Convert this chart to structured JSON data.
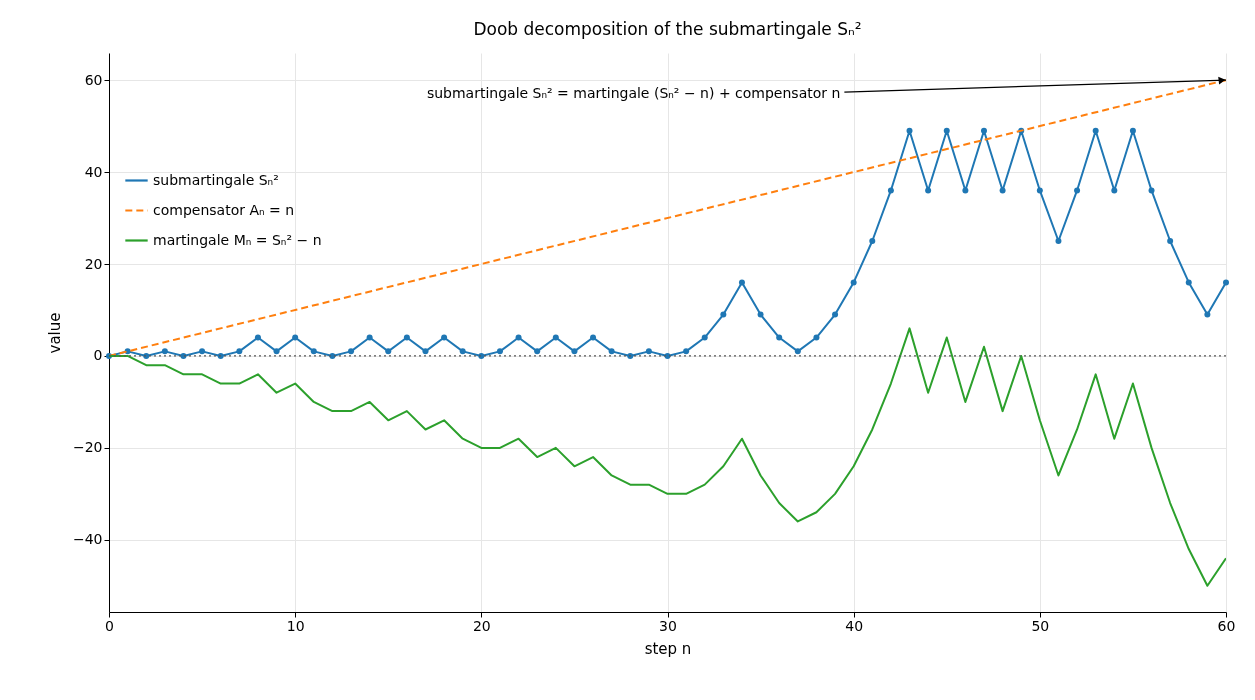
{
  "chart_data": {
    "type": "line",
    "title": "Doob decomposition of the submartingale Sₙ²",
    "xlabel": "step  n",
    "ylabel": "value",
    "x": [
      0,
      1,
      2,
      3,
      4,
      5,
      6,
      7,
      8,
      9,
      10,
      11,
      12,
      13,
      14,
      15,
      16,
      17,
      18,
      19,
      20,
      21,
      22,
      23,
      24,
      25,
      26,
      27,
      28,
      29,
      30,
      31,
      32,
      33,
      34,
      35,
      36,
      37,
      38,
      39,
      40,
      41,
      42,
      43,
      44,
      45,
      46,
      47,
      48,
      49,
      50,
      51,
      52,
      53,
      54,
      55,
      56,
      57,
      58,
      59,
      60
    ],
    "series": [
      {
        "name": "submartingale  Sₙ²",
        "color": "#1f77b4",
        "marker": "circle",
        "line_style": "solid",
        "values": [
          0,
          1,
          0,
          1,
          0,
          1,
          0,
          1,
          4,
          1,
          4,
          1,
          0,
          1,
          4,
          1,
          4,
          1,
          4,
          1,
          0,
          1,
          4,
          1,
          4,
          1,
          4,
          1,
          0,
          1,
          0,
          1,
          4,
          9,
          16,
          9,
          4,
          1,
          4,
          9,
          16,
          25,
          36,
          49,
          36,
          49,
          36,
          49,
          36,
          49,
          36,
          25,
          36,
          49,
          36,
          49,
          36,
          25,
          16,
          9,
          16
        ]
      },
      {
        "name": "compensator  Aₙ = n",
        "color": "#ff7f0e",
        "line_style": "dashed",
        "x": [
          0,
          60
        ],
        "values": [
          0,
          60
        ]
      },
      {
        "name": "martingale  Mₙ = Sₙ² − n",
        "color": "#2ca02c",
        "line_style": "solid",
        "values": [
          0,
          0,
          -2,
          -2,
          -4,
          -4,
          -6,
          -6,
          -4,
          -8,
          -6,
          -10,
          -12,
          -12,
          -10,
          -14,
          -12,
          -16,
          -14,
          -18,
          -20,
          -20,
          -18,
          -22,
          -20,
          -24,
          -22,
          -26,
          -28,
          -28,
          -30,
          -30,
          -28,
          -24,
          -18,
          -26,
          -32,
          -36,
          -34,
          -30,
          -24,
          -16,
          -6,
          6,
          -8,
          4,
          -10,
          2,
          -12,
          0,
          -14,
          -26,
          -16,
          -4,
          -18,
          -6,
          -20,
          -32,
          -42,
          -50,
          -44
        ]
      }
    ],
    "xlim": [
      0,
      60
    ],
    "xticks": [
      0,
      10,
      20,
      30,
      40,
      50,
      60
    ],
    "ylim": [
      -55.7,
      65.9
    ],
    "yticks": [
      -40,
      -20,
      0,
      20,
      40,
      60
    ],
    "ref_lines": [
      {
        "axis": "y",
        "value": 0,
        "color": "#555555",
        "line_style": "dotted"
      }
    ],
    "annotations": [
      {
        "text": "submartingale  Sₙ² =  martingale (Sₙ² − n) +  compensator n",
        "x": 60,
        "y": 60
      }
    ],
    "grid": true,
    "legend": "top left"
  }
}
